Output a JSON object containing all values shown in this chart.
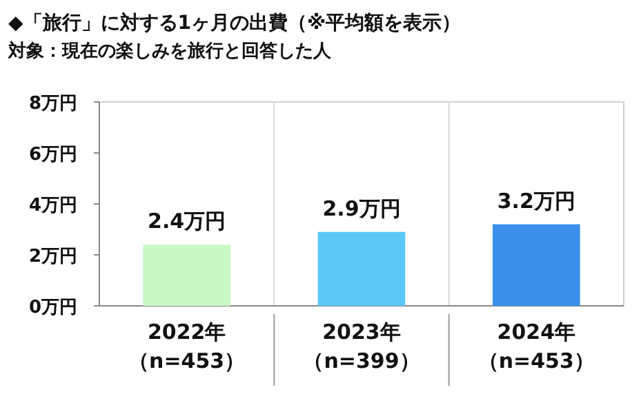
{
  "chart_data": {
    "type": "bar",
    "title": "◆「旅行」に対する1ヶ月の出費（※平均額を表示）",
    "subtitle": "対象：現在の楽しみを旅行と回答した人",
    "categories": [
      "2022年（n=453）",
      "2023年（n=399）",
      "2024年（n=453）"
    ],
    "values": [
      2.4,
      2.9,
      3.2
    ],
    "colors": [
      "#c9f8c6",
      "#5cc8f6",
      "#3b8fea"
    ],
    "value_labels": [
      "2.4万円",
      "2.9万円",
      "3.2万円"
    ],
    "ylim": [
      0,
      8
    ],
    "yticks": [
      {
        "value": 0,
        "label": "0万円"
      },
      {
        "value": 2,
        "label": "2万円"
      },
      {
        "value": 4,
        "label": "4万円"
      },
      {
        "value": 6,
        "label": "6万円"
      },
      {
        "value": 8,
        "label": "8万円"
      }
    ],
    "grid": false
  }
}
